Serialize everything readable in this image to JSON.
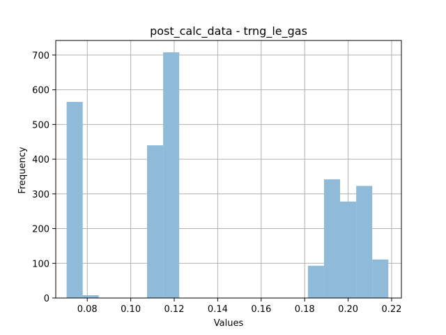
{
  "chart_data": {
    "type": "bar",
    "title": "post_calc_data - trng_le_gas",
    "xlabel": "Values",
    "ylabel": "Frequency",
    "xlim": [
      0.0655,
      0.2245
    ],
    "ylim": [
      0,
      742
    ],
    "xticks": [
      0.08,
      0.1,
      0.12,
      0.14,
      0.16,
      0.18,
      0.2,
      0.22
    ],
    "xtick_labels": [
      "0.08",
      "0.10",
      "0.12",
      "0.14",
      "0.16",
      "0.18",
      "0.20",
      "0.22"
    ],
    "yticks": [
      0,
      100,
      200,
      300,
      400,
      500,
      600,
      700
    ],
    "ytick_labels": [
      "0",
      "100",
      "200",
      "300",
      "400",
      "500",
      "600",
      "700"
    ],
    "grid": true,
    "bar_color": "#8fbbd9",
    "bins": [
      {
        "x0": 0.0705,
        "x1": 0.0779,
        "count": 565
      },
      {
        "x0": 0.0779,
        "x1": 0.0853,
        "count": 8
      },
      {
        "x0": 0.1075,
        "x1": 0.1149,
        "count": 440
      },
      {
        "x0": 0.1149,
        "x1": 0.1223,
        "count": 708
      },
      {
        "x0": 0.1815,
        "x1": 0.1889,
        "count": 93
      },
      {
        "x0": 0.1889,
        "x1": 0.1963,
        "count": 342
      },
      {
        "x0": 0.1963,
        "x1": 0.2037,
        "count": 278
      },
      {
        "x0": 0.2037,
        "x1": 0.2111,
        "count": 323
      },
      {
        "x0": 0.2111,
        "x1": 0.2185,
        "count": 111
      }
    ]
  }
}
